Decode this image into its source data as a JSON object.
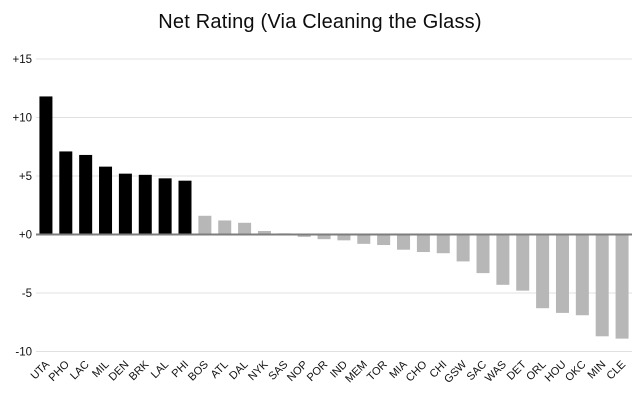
{
  "chart_data": {
    "type": "bar",
    "title": "Net Rating (Via Cleaning the Glass)",
    "categories": [
      "UTA",
      "PHO",
      "LAC",
      "MIL",
      "DEN",
      "BRK",
      "LAL",
      "PHI",
      "BOS",
      "ATL",
      "DAL",
      "NYK",
      "SAS",
      "NOP",
      "POR",
      "IND",
      "MEM",
      "TOR",
      "MIA",
      "CHO",
      "CHI",
      "GSW",
      "SAC",
      "WAS",
      "DET",
      "ORL",
      "HOU",
      "OKC",
      "MIN",
      "CLE"
    ],
    "values": [
      11.8,
      7.1,
      6.8,
      5.8,
      5.2,
      5.1,
      4.8,
      4.6,
      1.6,
      1.2,
      1.0,
      0.3,
      0.1,
      -0.2,
      -0.4,
      -0.5,
      -0.8,
      -0.9,
      -1.3,
      -1.5,
      -1.6,
      -2.3,
      -3.3,
      -4.3,
      -4.8,
      -6.3,
      -6.7,
      -6.9,
      -8.7,
      -8.9
    ],
    "highlight_count": 8,
    "colors": {
      "highlight_bar": "#000000",
      "default_bar": "#b7b7b7",
      "grid_line": "#e0e0e0",
      "zero_baseline": "#7d7d7d",
      "tick_text": "#111111"
    },
    "y_ticks": [
      {
        "value": 15,
        "label": "+15"
      },
      {
        "value": 10,
        "label": "+10"
      },
      {
        "value": 5,
        "label": "+5"
      },
      {
        "value": 0,
        "label": "+0"
      },
      {
        "value": -5,
        "label": "-5"
      },
      {
        "value": -10,
        "label": "-10"
      }
    ],
    "ylim": [
      -10,
      15
    ],
    "xlabel": "",
    "ylabel": "",
    "grid": true,
    "legend": "none",
    "x_label_rotation_deg": -45
  }
}
